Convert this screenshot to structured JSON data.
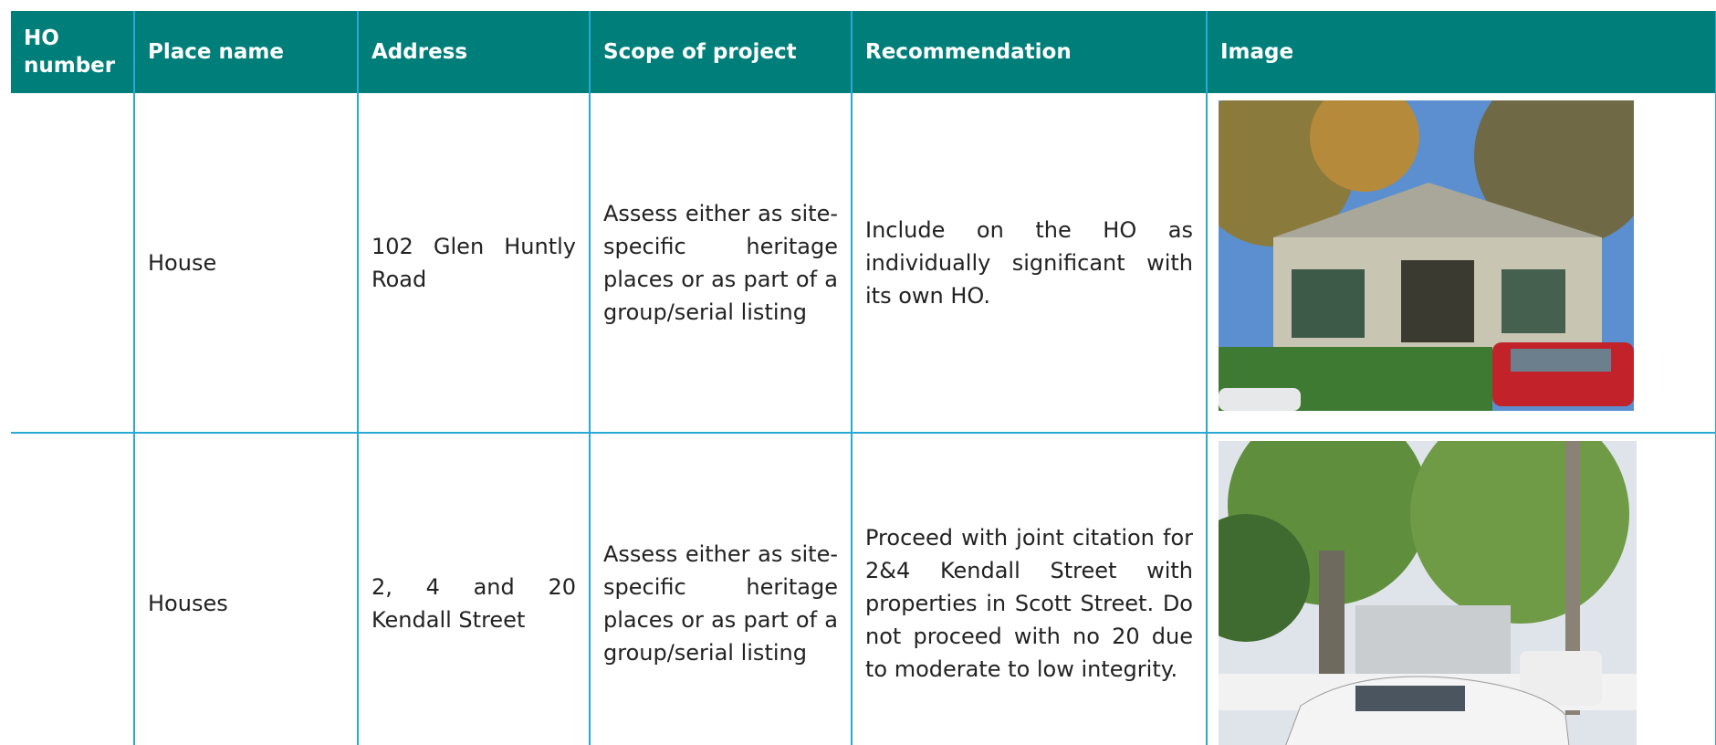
{
  "table": {
    "header": [
      "HO number",
      "Place name",
      "Address",
      "Scope of project",
      "Recommendation",
      "Image"
    ],
    "rows": [
      {
        "place_name": "House",
        "address": "102 Glen Huntly Road",
        "scope": "Assess either as site-specific heritage places or as part of a group/serial listing",
        "recommendation": "Include on the HO as individually significant with its own HO."
      },
      {
        "place_name": "Houses",
        "address": "2, 4 and 20 Kendall Street",
        "scope": "Assess either as site-specific heritage places or as part of a group/serial listing",
        "recommendation": "Proceed with joint citation for 2&4 Kendall Street with properties in Scott Street. Do not proceed with no 20 due to moderate to low integrity."
      }
    ]
  }
}
